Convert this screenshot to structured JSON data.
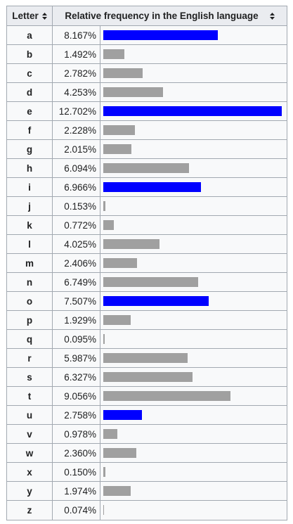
{
  "table": {
    "header": {
      "letter_label": "Letter",
      "frequency_label": "Relative frequency in the English language"
    },
    "colors": {
      "vowel_bar": "#0000ff",
      "consonant_bar": "#a0a0a0"
    },
    "max_percent": 12.702,
    "rows": [
      {
        "letter": "a",
        "freq": "8.167%",
        "value": 8.167,
        "vowel": true
      },
      {
        "letter": "b",
        "freq": "1.492%",
        "value": 1.492,
        "vowel": false
      },
      {
        "letter": "c",
        "freq": "2.782%",
        "value": 2.782,
        "vowel": false
      },
      {
        "letter": "d",
        "freq": "4.253%",
        "value": 4.253,
        "vowel": false
      },
      {
        "letter": "e",
        "freq": "12.702%",
        "value": 12.702,
        "vowel": true
      },
      {
        "letter": "f",
        "freq": "2.228%",
        "value": 2.228,
        "vowel": false
      },
      {
        "letter": "g",
        "freq": "2.015%",
        "value": 2.015,
        "vowel": false
      },
      {
        "letter": "h",
        "freq": "6.094%",
        "value": 6.094,
        "vowel": false
      },
      {
        "letter": "i",
        "freq": "6.966%",
        "value": 6.966,
        "vowel": true
      },
      {
        "letter": "j",
        "freq": "0.153%",
        "value": 0.153,
        "vowel": false
      },
      {
        "letter": "k",
        "freq": "0.772%",
        "value": 0.772,
        "vowel": false
      },
      {
        "letter": "l",
        "freq": "4.025%",
        "value": 4.025,
        "vowel": false
      },
      {
        "letter": "m",
        "freq": "2.406%",
        "value": 2.406,
        "vowel": false
      },
      {
        "letter": "n",
        "freq": "6.749%",
        "value": 6.749,
        "vowel": false
      },
      {
        "letter": "o",
        "freq": "7.507%",
        "value": 7.507,
        "vowel": true
      },
      {
        "letter": "p",
        "freq": "1.929%",
        "value": 1.929,
        "vowel": false
      },
      {
        "letter": "q",
        "freq": "0.095%",
        "value": 0.095,
        "vowel": false
      },
      {
        "letter": "r",
        "freq": "5.987%",
        "value": 5.987,
        "vowel": false
      },
      {
        "letter": "s",
        "freq": "6.327%",
        "value": 6.327,
        "vowel": false
      },
      {
        "letter": "t",
        "freq": "9.056%",
        "value": 9.056,
        "vowel": false
      },
      {
        "letter": "u",
        "freq": "2.758%",
        "value": 2.758,
        "vowel": true
      },
      {
        "letter": "v",
        "freq": "0.978%",
        "value": 0.978,
        "vowel": false
      },
      {
        "letter": "w",
        "freq": "2.360%",
        "value": 2.36,
        "vowel": false
      },
      {
        "letter": "x",
        "freq": "0.150%",
        "value": 0.15,
        "vowel": false
      },
      {
        "letter": "y",
        "freq": "1.974%",
        "value": 1.974,
        "vowel": false
      },
      {
        "letter": "z",
        "freq": "0.074%",
        "value": 0.074,
        "vowel": false
      }
    ]
  }
}
